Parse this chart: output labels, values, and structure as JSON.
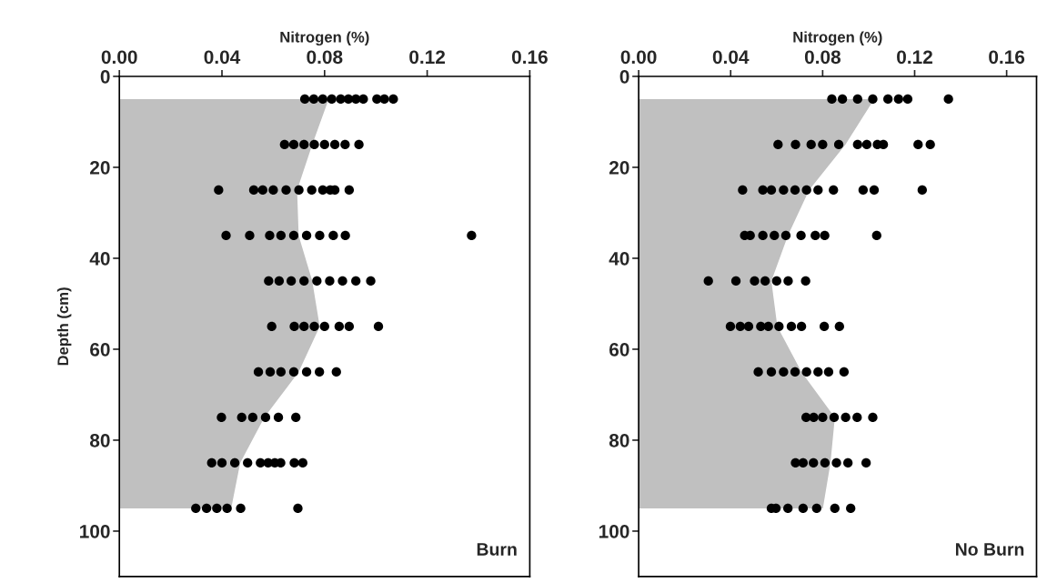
{
  "chart_data": [
    {
      "type": "scatter",
      "orientation": "horizontal",
      "xlabel": "Nitrogen (%)",
      "ylabel": "Depth (cm)",
      "xlim": [
        0,
        0.16
      ],
      "xticks": [
        {
          "value": 0,
          "label": "0.00"
        },
        {
          "value": 0.04,
          "label": "0.04"
        },
        {
          "value": 0.08,
          "label": "0.08"
        },
        {
          "value": 0.12,
          "label": "0.12"
        },
        {
          "value": 0.16,
          "label": "0.16"
        }
      ],
      "ylim": [
        110,
        0
      ],
      "yticks": [
        0,
        20,
        40,
        60,
        80,
        100
      ],
      "grid": false,
      "legend": false,
      "annotations": [
        "Burn"
      ],
      "series": [
        {
          "type": "area",
          "color": "#c0c0c0",
          "x": [
            5,
            15,
            25,
            35,
            45,
            55,
            65,
            75,
            85,
            95
          ],
          "values": [
            0.0816,
            0.0752,
            0.0693,
            0.0699,
            0.0752,
            0.0781,
            0.0699,
            0.0565,
            0.0471,
            0.0436
          ]
        },
        {
          "color": "#000000",
          "marker": "circle",
          "values": [
            0.0723,
            0.0758,
            0.0793,
            0.0828,
            0.0863,
            0.0893,
            0.0922,
            0.0951,
            0.1004,
            0.1033,
            0.1068,
            0.0644,
            0.068,
            0.072,
            0.076,
            0.08,
            0.084,
            0.088,
            0.0934,
            0.0387,
            0.0524,
            0.0559,
            0.06,
            0.065,
            0.07,
            0.075,
            0.0793,
            0.0822,
            0.084,
            0.0896,
            0.0416,
            0.0508,
            0.0586,
            0.063,
            0.068,
            0.073,
            0.0781,
            0.0834,
            0.0881,
            0.1373,
            0.0582,
            0.0623,
            0.067,
            0.072,
            0.077,
            0.082,
            0.087,
            0.0922,
            0.098,
            0.0594,
            0.0682,
            0.072,
            0.076,
            0.08,
            0.0857,
            0.0896,
            0.101,
            0.0542,
            0.0588,
            0.063,
            0.068,
            0.073,
            0.078,
            0.0846,
            0.0398,
            0.0477,
            0.052,
            0.057,
            0.062,
            0.0688,
            0.036,
            0.04,
            0.045,
            0.05,
            0.055,
            0.058,
            0.0606,
            0.0629,
            0.0682,
            0.0715,
            0.0298,
            0.034,
            0.038,
            0.042,
            0.0473,
            0.0696
          ],
          "x": [
            5,
            5,
            5,
            5,
            5,
            5,
            5,
            5,
            5,
            5,
            5,
            15,
            15,
            15,
            15,
            15,
            15,
            15,
            15,
            25,
            25,
            25,
            25,
            25,
            25,
            25,
            25,
            25,
            25,
            25,
            35,
            35,
            35,
            35,
            35,
            35,
            35,
            35,
            35,
            35,
            45,
            45,
            45,
            45,
            45,
            45,
            45,
            45,
            45,
            55,
            55,
            55,
            55,
            55,
            55,
            55,
            55,
            65,
            65,
            65,
            65,
            65,
            65,
            65,
            75,
            75,
            75,
            75,
            75,
            75,
            85,
            85,
            85,
            85,
            85,
            85,
            85,
            85,
            85,
            85,
            95,
            95,
            95,
            95,
            95,
            95
          ]
        }
      ]
    },
    {
      "type": "scatter",
      "orientation": "horizontal",
      "xlabel": "Nitrogen (%)",
      "xlim": [
        0,
        0.173
      ],
      "xticks": [
        {
          "value": 0,
          "label": "0.00"
        },
        {
          "value": 0.04,
          "label": "0.04"
        },
        {
          "value": 0.08,
          "label": "0.08"
        },
        {
          "value": 0.12,
          "label": "0.12"
        },
        {
          "value": 0.16,
          "label": "0.16"
        }
      ],
      "ylim": [
        110,
        0
      ],
      "yticks": [
        0,
        20,
        40,
        60,
        80,
        100
      ],
      "grid": false,
      "legend": false,
      "annotations": [
        "No Burn"
      ],
      "series": [
        {
          "type": "area",
          "color": "#c0c0c0",
          "x": [
            5,
            15,
            25,
            35,
            45,
            55,
            65,
            75,
            85,
            95
          ],
          "values": [
            0.1024,
            0.0899,
            0.0741,
            0.0649,
            0.0577,
            0.0603,
            0.0708,
            0.0853,
            0.0834,
            0.0801
          ]
        },
        {
          "color": "#000000",
          "marker": "circle",
          "values": [
            0.084,
            0.0886,
            0.0952,
            0.1018,
            0.1084,
            0.113,
            0.117,
            0.1347,
            0.0606,
            0.0682,
            0.075,
            0.08,
            0.087,
            0.0952,
            0.0992,
            0.1038,
            0.1064,
            0.1215,
            0.1268,
            0.0452,
            0.054,
            0.0577,
            0.063,
            0.068,
            0.073,
            0.078,
            0.0847,
            0.0976,
            0.1024,
            0.1233,
            0.0461,
            0.0485,
            0.054,
            0.059,
            0.064,
            0.0706,
            0.0768,
            0.0809,
            0.1035,
            0.0303,
            0.0423,
            0.0504,
            0.055,
            0.06,
            0.065,
            0.0726,
            0.0399,
            0.0442,
            0.0478,
            0.0531,
            0.0564,
            0.061,
            0.0664,
            0.0708,
            0.0807,
            0.0873,
            0.052,
            0.0577,
            0.063,
            0.068,
            0.073,
            0.078,
            0.0826,
            0.0893,
            0.0728,
            0.0761,
            0.08,
            0.085,
            0.09,
            0.095,
            0.1018,
            0.0682,
            0.0715,
            0.076,
            0.081,
            0.086,
            0.091,
            0.0989,
            0.0577,
            0.0597,
            0.0649,
            0.0715,
            0.0774,
            0.0853,
            0.0922
          ],
          "x": [
            5,
            5,
            5,
            5,
            5,
            5,
            5,
            5,
            15,
            15,
            15,
            15,
            15,
            15,
            15,
            15,
            15,
            15,
            15,
            25,
            25,
            25,
            25,
            25,
            25,
            25,
            25,
            25,
            25,
            25,
            35,
            35,
            35,
            35,
            35,
            35,
            35,
            35,
            35,
            45,
            45,
            45,
            45,
            45,
            45,
            45,
            55,
            55,
            55,
            55,
            55,
            55,
            55,
            55,
            55,
            55,
            65,
            65,
            65,
            65,
            65,
            65,
            65,
            65,
            75,
            75,
            75,
            75,
            75,
            75,
            75,
            85,
            85,
            85,
            85,
            85,
            85,
            85,
            95,
            95,
            95,
            95,
            95,
            95,
            95
          ]
        }
      ]
    }
  ]
}
